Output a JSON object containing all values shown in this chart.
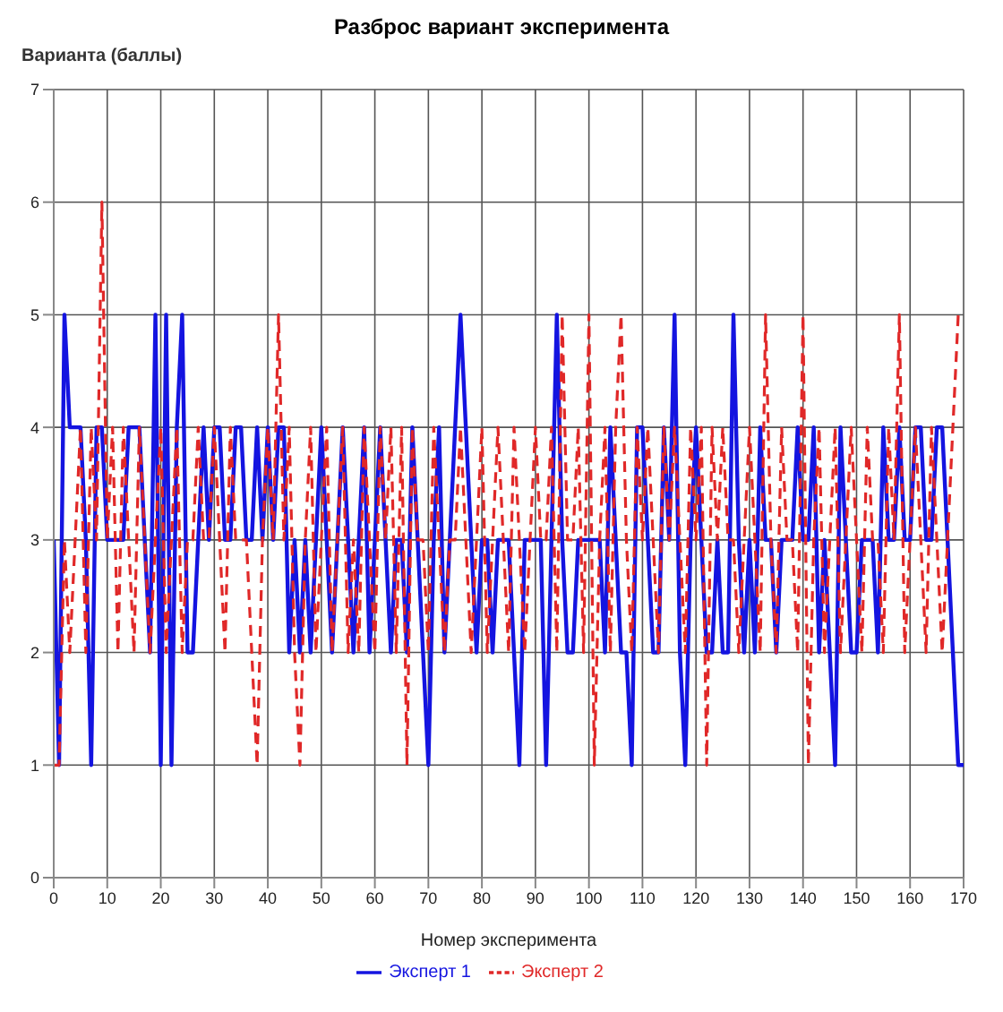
{
  "chart_data": {
    "type": "line",
    "title": "Разброс вариант эксперимента",
    "xlabel": "Номер эксперимента",
    "ylabel": "Варианта (баллы)",
    "x": [
      0,
      1,
      2,
      3,
      4,
      5,
      6,
      7,
      8,
      9,
      10,
      11,
      12,
      13,
      14,
      15,
      16,
      17,
      18,
      19,
      20,
      21,
      22,
      23,
      24,
      25,
      26,
      27,
      28,
      29,
      30,
      31,
      32,
      33,
      34,
      35,
      36,
      37,
      38,
      39,
      40,
      41,
      42,
      43,
      44,
      45,
      46,
      47,
      48,
      49,
      50,
      51,
      52,
      53,
      54,
      55,
      56,
      57,
      58,
      59,
      60,
      61,
      62,
      63,
      64,
      65,
      66,
      67,
      68,
      69,
      70,
      71,
      72,
      73,
      74,
      75,
      76,
      77,
      78,
      79,
      80,
      81,
      82,
      83,
      84,
      85,
      86,
      87,
      88,
      89,
      90,
      91,
      92,
      93,
      94,
      95,
      96,
      97,
      98,
      99,
      100,
      101,
      102,
      103,
      104,
      105,
      106,
      107,
      108,
      109,
      110,
      111,
      112,
      113,
      114,
      115,
      116,
      117,
      118,
      119,
      120,
      121,
      122,
      123,
      124,
      125,
      126,
      127,
      128,
      129,
      130,
      131,
      132,
      133,
      134,
      135,
      136,
      137,
      138,
      139,
      140,
      141,
      142,
      143,
      144,
      145,
      146,
      147,
      148,
      149,
      150,
      151,
      152,
      153,
      154,
      155,
      156,
      157,
      158,
      159,
      160,
      161,
      162,
      163,
      164,
      165,
      166,
      167,
      168,
      169,
      170
    ],
    "series": [
      {
        "name": "Эксперт 1",
        "color": "#1414e0",
        "line_style": "solid",
        "values": [
          3,
          1,
          5,
          4,
          4,
          4,
          3,
          1,
          4,
          4,
          3,
          3,
          3,
          3,
          4,
          4,
          4,
          3,
          2,
          5,
          1,
          5,
          1,
          4,
          5,
          2,
          2,
          3,
          4,
          3,
          4,
          4,
          3,
          3,
          4,
          4,
          3,
          3,
          4,
          3,
          4,
          3,
          4,
          4,
          2,
          3,
          2,
          3,
          2,
          3,
          4,
          3,
          2,
          3,
          4,
          3,
          2,
          3,
          4,
          2,
          3,
          4,
          3,
          2,
          3,
          3,
          2,
          4,
          3,
          2,
          1,
          3,
          4,
          2,
          3,
          4,
          5,
          4,
          3,
          2,
          3,
          3,
          2,
          3,
          3,
          3,
          2,
          1,
          3,
          3,
          3,
          3,
          1,
          3,
          5,
          3,
          2,
          2,
          3,
          3,
          3,
          3,
          3,
          2,
          4,
          3,
          2,
          2,
          1,
          4,
          4,
          3,
          2,
          2,
          4,
          3,
          5,
          2,
          1,
          3,
          4,
          3,
          2,
          2,
          3,
          2,
          2,
          5,
          3,
          2,
          3,
          2,
          4,
          3,
          3,
          2,
          3,
          3,
          3,
          4,
          3,
          3,
          4,
          2,
          3,
          2,
          1,
          4,
          3,
          2,
          2,
          3,
          3,
          3,
          2,
          4,
          3,
          3,
          4,
          3,
          3,
          4,
          4,
          3,
          3,
          4,
          4,
          3,
          2,
          1,
          1
        ]
      },
      {
        "name": "Эксперт 2",
        "color": "#e02828",
        "line_style": "dashed",
        "values": [
          1,
          1,
          3,
          2,
          3,
          4,
          2,
          4,
          3,
          6,
          3,
          4,
          2,
          4,
          3,
          2,
          4,
          3,
          2,
          3,
          4,
          2,
          3,
          4,
          2,
          3,
          3,
          4,
          3,
          3,
          4,
          3,
          2,
          4,
          3,
          3,
          3,
          2,
          1,
          3,
          4,
          3,
          5,
          3,
          4,
          2,
          1,
          3,
          4,
          2,
          3,
          4,
          2,
          3,
          4,
          2,
          3,
          2,
          4,
          3,
          2,
          4,
          3,
          4,
          2,
          4,
          1,
          4,
          3,
          3,
          2,
          4,
          3,
          2,
          3,
          3,
          4,
          3,
          2,
          3,
          4,
          2,
          3,
          4,
          3,
          2,
          4,
          3,
          2,
          3,
          4,
          3,
          3,
          4,
          2,
          5,
          3,
          3,
          4,
          2,
          5,
          1,
          3,
          4,
          2,
          4,
          5,
          3,
          2,
          4,
          3,
          4,
          3,
          2,
          4,
          3,
          4,
          3,
          2,
          4,
          3,
          4,
          1,
          4,
          3,
          4,
          3,
          3,
          2,
          3,
          4,
          3,
          2,
          5,
          3,
          2,
          4,
          3,
          3,
          2,
          5,
          1,
          3,
          4,
          2,
          3,
          4,
          2,
          3,
          4,
          3,
          2,
          4,
          3,
          3,
          2,
          4,
          3,
          5,
          2,
          3,
          4,
          3,
          2,
          4,
          3,
          2,
          3,
          4,
          5,
          5
        ]
      }
    ],
    "xlim": [
      0,
      170
    ],
    "xticks": [
      0,
      10,
      20,
      30,
      40,
      50,
      60,
      70,
      80,
      90,
      100,
      110,
      120,
      130,
      140,
      150,
      160,
      170
    ],
    "ylim": [
      0,
      7
    ],
    "yticks": [
      0,
      1,
      2,
      3,
      4,
      5,
      6,
      7
    ],
    "grid": true,
    "legend": "bottom"
  }
}
